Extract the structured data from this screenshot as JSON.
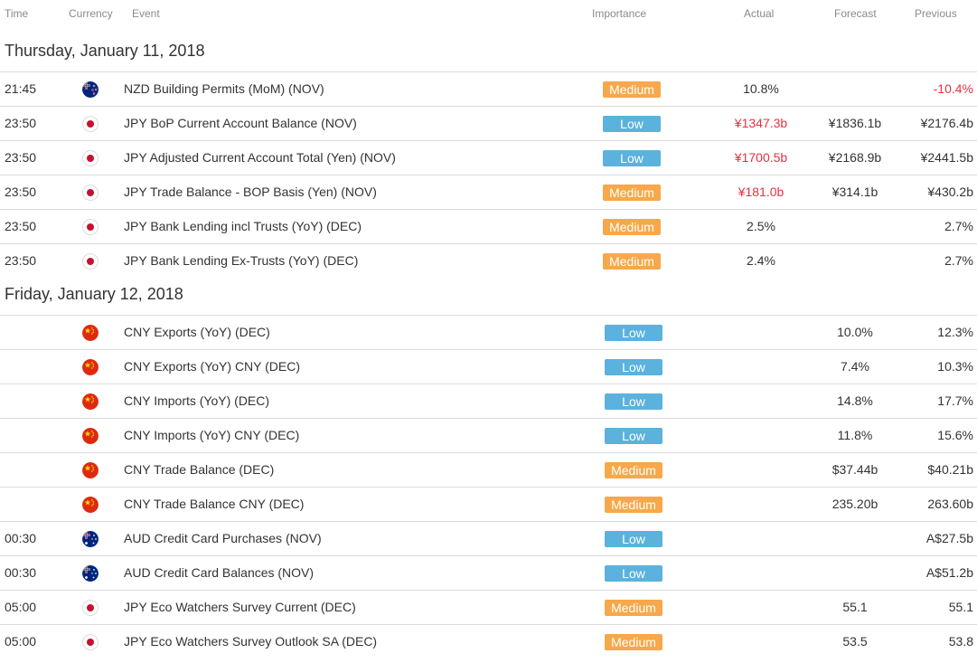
{
  "header": {
    "time": "Time",
    "currency": "Currency",
    "event": "Event",
    "importance": "Importance",
    "actual": "Actual",
    "forecast": "Forecast",
    "previous": "Previous"
  },
  "colors": {
    "medium": "#f7a84a",
    "low": "#5bb2dc",
    "negative": "#e8313f"
  },
  "days": [
    {
      "title": "Thursday, January 11, 2018",
      "rows": [
        {
          "time": "21:45",
          "flag": "nz-flag-icon",
          "event": "NZD Building Permits (MoM) (NOV)",
          "importance": "Medium",
          "level": "medium",
          "actual": "10.8%",
          "actual_neg": false,
          "forecast": "",
          "previous": "-10.4%",
          "previous_neg": true
        },
        {
          "time": "23:50",
          "flag": "jp-flag-icon",
          "event": "JPY BoP Current Account Balance (NOV)",
          "importance": "Low",
          "level": "low",
          "actual": "¥1347.3b",
          "actual_neg": true,
          "forecast": "¥1836.1b",
          "previous": "¥2176.4b",
          "previous_neg": false
        },
        {
          "time": "23:50",
          "flag": "jp-flag-icon",
          "event": "JPY Adjusted Current Account Total (Yen) (NOV)",
          "importance": "Low",
          "level": "low",
          "actual": "¥1700.5b",
          "actual_neg": true,
          "forecast": "¥2168.9b",
          "previous": "¥2441.5b",
          "previous_neg": false
        },
        {
          "time": "23:50",
          "flag": "jp-flag-icon",
          "event": "JPY Trade Balance - BOP Basis (Yen) (NOV)",
          "importance": "Medium",
          "level": "medium",
          "actual": "¥181.0b",
          "actual_neg": true,
          "forecast": "¥314.1b",
          "previous": "¥430.2b",
          "previous_neg": false
        },
        {
          "time": "23:50",
          "flag": "jp-flag-icon",
          "event": "JPY Bank Lending incl Trusts (YoY) (DEC)",
          "importance": "Medium",
          "level": "medium",
          "actual": "2.5%",
          "actual_neg": false,
          "forecast": "",
          "previous": "2.7%",
          "previous_neg": false
        },
        {
          "time": "23:50",
          "flag": "jp-flag-icon",
          "event": "JPY Bank Lending Ex-Trusts (YoY) (DEC)",
          "importance": "Medium",
          "level": "medium",
          "actual": "2.4%",
          "actual_neg": false,
          "forecast": "",
          "previous": "2.7%",
          "previous_neg": false
        }
      ]
    },
    {
      "title": "Friday, January 12, 2018",
      "rows": [
        {
          "time": "",
          "flag": "cn-flag-icon",
          "event": "CNY Exports (YoY) (DEC)",
          "importance": "Low",
          "level": "low",
          "actual": "",
          "actual_neg": false,
          "forecast": "10.0%",
          "previous": "12.3%",
          "previous_neg": false
        },
        {
          "time": "",
          "flag": "cn-flag-icon",
          "event": "CNY Exports (YoY) CNY (DEC)",
          "importance": "Low",
          "level": "low",
          "actual": "",
          "actual_neg": false,
          "forecast": "7.4%",
          "previous": "10.3%",
          "previous_neg": false
        },
        {
          "time": "",
          "flag": "cn-flag-icon",
          "event": "CNY Imports (YoY) (DEC)",
          "importance": "Low",
          "level": "low",
          "actual": "",
          "actual_neg": false,
          "forecast": "14.8%",
          "previous": "17.7%",
          "previous_neg": false
        },
        {
          "time": "",
          "flag": "cn-flag-icon",
          "event": "CNY Imports (YoY) CNY (DEC)",
          "importance": "Low",
          "level": "low",
          "actual": "",
          "actual_neg": false,
          "forecast": "11.8%",
          "previous": "15.6%",
          "previous_neg": false
        },
        {
          "time": "",
          "flag": "cn-flag-icon",
          "event": "CNY Trade Balance (DEC)",
          "importance": "Medium",
          "level": "medium",
          "actual": "",
          "actual_neg": false,
          "forecast": "$37.44b",
          "previous": "$40.21b",
          "previous_neg": false
        },
        {
          "time": "",
          "flag": "cn-flag-icon",
          "event": "CNY Trade Balance CNY (DEC)",
          "importance": "Medium",
          "level": "medium",
          "actual": "",
          "actual_neg": false,
          "forecast": "235.20b",
          "previous": "263.60b",
          "previous_neg": false
        },
        {
          "time": "00:30",
          "flag": "au-flag-icon",
          "event": "AUD Credit Card Purchases (NOV)",
          "importance": "Low",
          "level": "low",
          "actual": "",
          "actual_neg": false,
          "forecast": "",
          "previous": "A$27.5b",
          "previous_neg": false
        },
        {
          "time": "00:30",
          "flag": "au-flag-icon",
          "event": "AUD Credit Card Balances (NOV)",
          "importance": "Low",
          "level": "low",
          "actual": "",
          "actual_neg": false,
          "forecast": "",
          "previous": "A$51.2b",
          "previous_neg": false
        },
        {
          "time": "05:00",
          "flag": "jp-flag-icon",
          "event": "JPY Eco Watchers Survey Current (DEC)",
          "importance": "Medium",
          "level": "medium",
          "actual": "",
          "actual_neg": false,
          "forecast": "55.1",
          "previous": "55.1",
          "previous_neg": false
        },
        {
          "time": "05:00",
          "flag": "jp-flag-icon",
          "event": "JPY Eco Watchers Survey Outlook SA (DEC)",
          "importance": "Medium",
          "level": "medium",
          "actual": "",
          "actual_neg": false,
          "forecast": "53.5",
          "previous": "53.8",
          "previous_neg": false
        }
      ]
    }
  ]
}
